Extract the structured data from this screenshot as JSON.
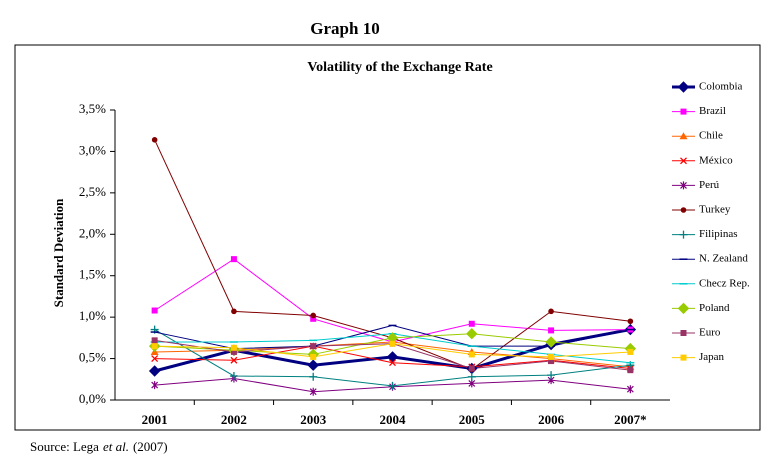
{
  "chart_data": {
    "type": "line",
    "heading": "Graph 10",
    "title": "Volatility of the Exchange Rate",
    "y_label": "Standard Deviation",
    "source": [
      "Source: Lega",
      "et al.",
      "(2007)"
    ],
    "categories": [
      "2001",
      "2002",
      "2003",
      "2004",
      "2005",
      "2006",
      "2007*"
    ],
    "ylim": [
      0,
      3.5
    ],
    "yticks": [
      {
        "value": 0,
        "label": "0,0%"
      },
      {
        "value": 0.5,
        "label": "0,5%"
      },
      {
        "value": 1,
        "label": "1,0%"
      },
      {
        "value": 1.5,
        "label": "1,5%"
      },
      {
        "value": 2,
        "label": "2,0%"
      },
      {
        "value": 2.5,
        "label": "2,5%"
      },
      {
        "value": 3,
        "label": "3,0%"
      },
      {
        "value": 3.5,
        "label": "3,5%"
      }
    ],
    "series": [
      {
        "name": "Colombia",
        "color": "#000080",
        "marker": "diamond",
        "width": 3,
        "values": [
          0.35,
          0.6,
          0.42,
          0.52,
          0.38,
          0.67,
          0.85
        ]
      },
      {
        "name": "Brazil",
        "color": "#ff00ff",
        "marker": "square",
        "width": 1,
        "values": [
          1.08,
          1.7,
          0.98,
          0.7,
          0.92,
          0.84,
          0.85
        ]
      },
      {
        "name": "Chile",
        "color": "#ff6600",
        "marker": "triangle",
        "width": 1,
        "values": [
          0.58,
          0.6,
          0.65,
          0.7,
          0.58,
          0.5,
          0.4
        ]
      },
      {
        "name": "México",
        "color": "#ff0000",
        "marker": "x",
        "width": 1,
        "values": [
          0.5,
          0.48,
          0.65,
          0.45,
          0.4,
          0.48,
          0.38
        ]
      },
      {
        "name": "Perú",
        "color": "#800080",
        "marker": "star",
        "width": 1,
        "values": [
          0.18,
          0.26,
          0.1,
          0.16,
          0.2,
          0.24,
          0.13
        ]
      },
      {
        "name": "Turkey",
        "color": "#800000",
        "marker": "circle",
        "width": 1,
        "values": [
          3.14,
          1.07,
          1.02,
          0.75,
          0.37,
          1.07,
          0.95
        ]
      },
      {
        "name": "Filipinas",
        "color": "#008080",
        "marker": "plus",
        "width": 1,
        "values": [
          0.85,
          0.29,
          0.28,
          0.17,
          0.28,
          0.3,
          0.42
        ]
      },
      {
        "name": "N. Zealand",
        "color": "#000080",
        "marker": "dash",
        "width": 1,
        "values": [
          0.82,
          0.62,
          0.65,
          0.9,
          0.65,
          0.65,
          0.85
        ]
      },
      {
        "name": "Checz Rep.",
        "color": "#00cccc",
        "marker": "dash",
        "width": 1,
        "values": [
          0.7,
          0.7,
          0.72,
          0.8,
          0.65,
          0.55,
          0.45
        ]
      },
      {
        "name": "Poland",
        "color": "#99cc00",
        "marker": "diamond",
        "width": 1,
        "values": [
          0.65,
          0.6,
          0.55,
          0.75,
          0.8,
          0.7,
          0.62
        ]
      },
      {
        "name": "Euro",
        "color": "#993366",
        "marker": "square",
        "width": 1,
        "values": [
          0.72,
          0.58,
          0.65,
          0.68,
          0.38,
          0.47,
          0.36
        ]
      },
      {
        "name": "Japan",
        "color": "#ffcc00",
        "marker": "square",
        "width": 1,
        "values": [
          0.65,
          0.63,
          0.52,
          0.68,
          0.55,
          0.52,
          0.58
        ]
      }
    ]
  }
}
